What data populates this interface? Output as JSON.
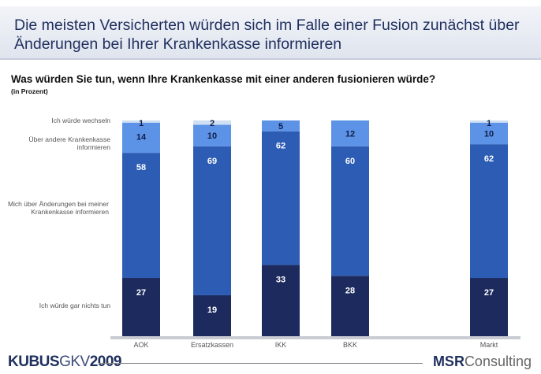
{
  "header": {
    "title": "Die meisten Versicherten würden sich im Falle einer Fusion zunächst über Änderungen bei Ihrer Krankenkasse informieren"
  },
  "chart_data": {
    "type": "bar",
    "stacked": true,
    "title": "Was würden Sie tun, wenn Ihre Krankenkasse mit einer anderen fusionieren würde?",
    "subtitle": "(in Prozent)",
    "categories": [
      "AOK",
      "Ersatzkassen",
      "IKK",
      "BKK",
      "Markt"
    ],
    "series": [
      {
        "name": "Ich würde gar nichts tun",
        "values": [
          27,
          19,
          33,
          28,
          27
        ],
        "color": "#1c2a5e"
      },
      {
        "name": "Mich über Änderungen bei meiner Krankenkasse informieren",
        "values": [
          58,
          69,
          62,
          60,
          62
        ],
        "color": "#2d5cb5"
      },
      {
        "name": "Über andere Krankenkasse informieren",
        "values": [
          14,
          10,
          5,
          12,
          10
        ],
        "color": "#5c93e6"
      },
      {
        "name": "Ich würde wechseln",
        "values": [
          1,
          2,
          0,
          0,
          1
        ],
        "color": "#cfe0f2"
      }
    ],
    "ylim": [
      0,
      100
    ]
  },
  "footer": {
    "left_bold": "KUBUS",
    "left_light": "GKV",
    "left_year": "2009",
    "right_bold": "MSR",
    "right_light": "Consulting"
  }
}
